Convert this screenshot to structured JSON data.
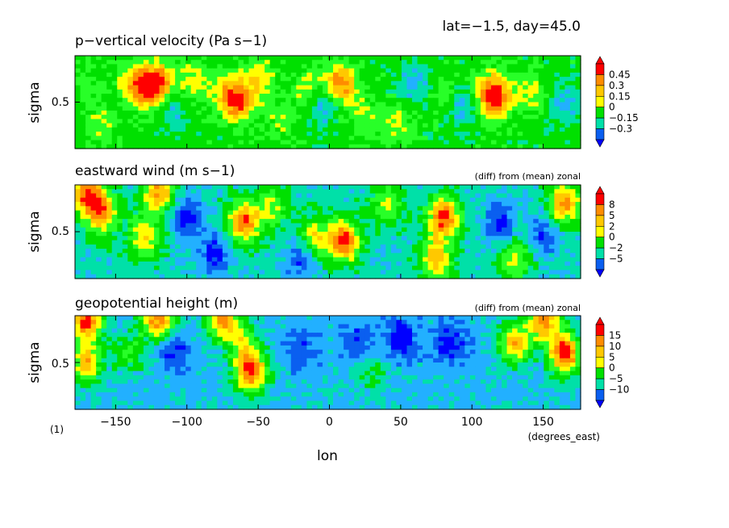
{
  "header": {
    "text": "lat=−1.5, day=45.0"
  },
  "footer": {
    "figure_tag": "(1)",
    "x_units": "(degrees_east)",
    "x_label": "lon"
  },
  "palette": {
    "levels": [
      "#0000ff",
      "#0a5ff0",
      "#22b0ff",
      "#00e0a8",
      "#00e000",
      "#28ff28",
      "#ffff00",
      "#ffc800",
      "#ff8c00",
      "#ff0000"
    ]
  },
  "chart_data": [
    {
      "type": "heatmap",
      "title": "p−vertical velocity (Pa s−1)",
      "subtitle": "",
      "xlabel": "lon",
      "ylabel": "sigma",
      "x_ticks": [
        "−150",
        "−100",
        "−50",
        "0",
        "50",
        "100",
        "150"
      ],
      "x_tick_values": [
        -150,
        -100,
        -50,
        0,
        50,
        100,
        150
      ],
      "y_ticks": [
        "0.5"
      ],
      "y_tick_values": [
        0.5
      ],
      "xlim": [
        -178.5,
        176.25
      ],
      "ylim": [
        1.0,
        0.0
      ],
      "colorbar_labels": [
        "0.45",
        "0.3",
        "0.15",
        "0",
        "−0.15",
        "−0.3"
      ],
      "value_range": [
        -0.45,
        0.6
      ],
      "background_value": 0.02,
      "features": [
        {
          "lon": -172,
          "sigma": 0.3,
          "value": 0.12
        },
        {
          "lon": -160,
          "sigma": 0.75,
          "value": 0.18
        },
        {
          "lon": -137,
          "sigma": 0.3,
          "value": 0.22
        },
        {
          "lon": -130,
          "sigma": 0.35,
          "value": 0.35
        },
        {
          "lon": -120,
          "sigma": 0.3,
          "value": 0.5
        },
        {
          "lon": -95,
          "sigma": 0.28,
          "value": 0.25
        },
        {
          "lon": -72,
          "sigma": 0.4,
          "value": 0.3
        },
        {
          "lon": -63,
          "sigma": 0.5,
          "value": 0.4
        },
        {
          "lon": -48,
          "sigma": 0.25,
          "value": 0.28
        },
        {
          "lon": -35,
          "sigma": 0.7,
          "value": 0.15
        },
        {
          "lon": -15,
          "sigma": 0.35,
          "value": 0.2
        },
        {
          "lon": 8,
          "sigma": 0.3,
          "value": 0.45
        },
        {
          "lon": 25,
          "sigma": 0.65,
          "value": 0.18
        },
        {
          "lon": 48,
          "sigma": 0.75,
          "value": 0.2
        },
        {
          "lon": 60,
          "sigma": 0.3,
          "value": -0.2
        },
        {
          "lon": 80,
          "sigma": 0.4,
          "value": 0.15
        },
        {
          "lon": 110,
          "sigma": 0.4,
          "value": 0.25
        },
        {
          "lon": 117,
          "sigma": 0.45,
          "value": 0.48
        },
        {
          "lon": 140,
          "sigma": 0.4,
          "value": 0.22
        },
        {
          "lon": -110,
          "sigma": 0.55,
          "value": -0.18
        },
        {
          "lon": -5,
          "sigma": 0.55,
          "value": -0.18
        },
        {
          "lon": 95,
          "sigma": 0.55,
          "value": -0.2
        },
        {
          "lon": 165,
          "sigma": 0.5,
          "value": -0.15
        }
      ]
    },
    {
      "type": "heatmap",
      "title": "eastward wind (m s−1)",
      "subtitle": "(diff) from (mean) zonal",
      "xlabel": "lon",
      "ylabel": "sigma",
      "x_ticks": [
        "−150",
        "−100",
        "−50",
        "0",
        "50",
        "100",
        "150"
      ],
      "x_tick_values": [
        -150,
        -100,
        -50,
        0,
        50,
        100,
        150
      ],
      "y_ticks": [
        "0.5"
      ],
      "y_tick_values": [
        0.5
      ],
      "xlim": [
        -178.5,
        176.25
      ],
      "ylim": [
        1.0,
        0.0
      ],
      "colorbar_labels": [
        "8",
        "5",
        "2",
        "0",
        "−2",
        "−5"
      ],
      "value_range": [
        -7,
        11
      ],
      "background_value": -1.0,
      "features": [
        {
          "lon": -170,
          "sigma": 0.08,
          "value": 9
        },
        {
          "lon": -160,
          "sigma": 0.3,
          "value": 8
        },
        {
          "lon": -130,
          "sigma": 0.55,
          "value": 6
        },
        {
          "lon": -120,
          "sigma": 0.08,
          "value": 8
        },
        {
          "lon": -60,
          "sigma": 0.4,
          "value": 9
        },
        {
          "lon": -40,
          "sigma": 0.25,
          "value": 4
        },
        {
          "lon": -10,
          "sigma": 0.55,
          "value": 5
        },
        {
          "lon": 10,
          "sigma": 0.6,
          "value": 10
        },
        {
          "lon": 40,
          "sigma": 0.2,
          "value": 4
        },
        {
          "lon": 80,
          "sigma": 0.35,
          "value": 10
        },
        {
          "lon": 75,
          "sigma": 0.8,
          "value": 7
        },
        {
          "lon": 130,
          "sigma": 0.8,
          "value": 5
        },
        {
          "lon": 165,
          "sigma": 0.2,
          "value": 8
        },
        {
          "lon": -100,
          "sigma": 0.35,
          "value": -6
        },
        {
          "lon": -80,
          "sigma": 0.75,
          "value": -6
        },
        {
          "lon": -20,
          "sigma": 0.8,
          "value": -5
        },
        {
          "lon": 120,
          "sigma": 0.4,
          "value": -6
        },
        {
          "lon": 150,
          "sigma": 0.55,
          "value": -5
        }
      ]
    },
    {
      "type": "heatmap",
      "title": "geopotential height (m)",
      "subtitle": "(diff) from (mean) zonal",
      "xlabel": "lon",
      "ylabel": "sigma",
      "x_ticks": [
        "−150",
        "−100",
        "−50",
        "0",
        "50",
        "100",
        "150"
      ],
      "x_tick_values": [
        -150,
        -100,
        -50,
        0,
        50,
        100,
        150
      ],
      "y_ticks": [
        "0.5"
      ],
      "y_tick_values": [
        0.5
      ],
      "xlim": [
        -178.5,
        176.25
      ],
      "ylim": [
        1.0,
        0.0
      ],
      "colorbar_labels": [
        "15",
        "10",
        "5",
        "0",
        "−5",
        "−10"
      ],
      "value_range": [
        -13,
        20
      ],
      "background_value": -4,
      "features": [
        {
          "lon": -170,
          "sigma": 0.05,
          "value": 18
        },
        {
          "lon": -120,
          "sigma": 0.05,
          "value": 16
        },
        {
          "lon": -75,
          "sigma": 0.05,
          "value": 14
        },
        {
          "lon": -55,
          "sigma": 0.6,
          "value": 18
        },
        {
          "lon": -170,
          "sigma": 0.5,
          "value": 12
        },
        {
          "lon": -140,
          "sigma": 0.4,
          "value": 4
        },
        {
          "lon": -60,
          "sigma": 0.3,
          "value": 6
        },
        {
          "lon": 30,
          "sigma": 0.6,
          "value": 2
        },
        {
          "lon": 150,
          "sigma": 0.05,
          "value": 15
        },
        {
          "lon": 165,
          "sigma": 0.4,
          "value": 20
        },
        {
          "lon": 130,
          "sigma": 0.3,
          "value": 12
        },
        {
          "lon": -110,
          "sigma": 0.35,
          "value": -11
        },
        {
          "lon": -20,
          "sigma": 0.35,
          "value": -9
        },
        {
          "lon": 50,
          "sigma": 0.25,
          "value": -12
        },
        {
          "lon": 85,
          "sigma": 0.3,
          "value": -12
        },
        {
          "lon": 20,
          "sigma": 0.3,
          "value": -10
        }
      ]
    }
  ]
}
